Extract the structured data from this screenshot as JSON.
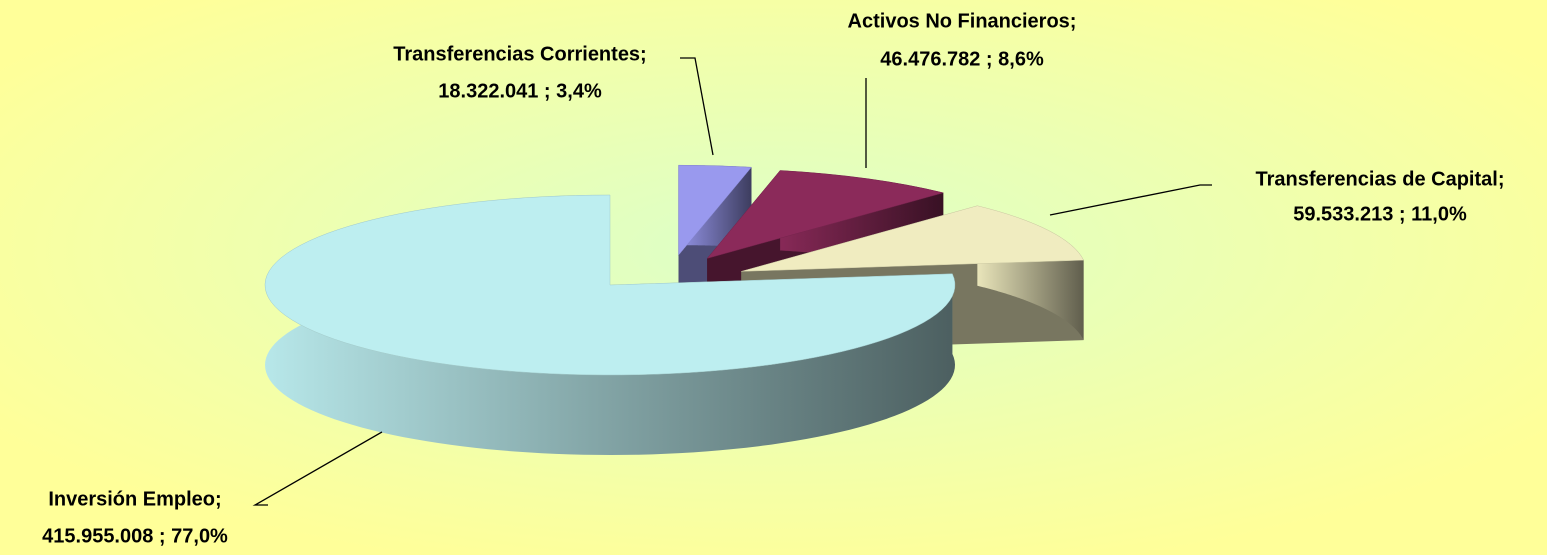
{
  "chart_data": {
    "type": "pie3d",
    "categories": [
      "Transferencias Corrientes;",
      "Activos No Financieros;",
      "Transferencias de Capital;",
      "Inversión Empleo;"
    ],
    "values": [
      18322041,
      46476782,
      59533213,
      415955008
    ],
    "value_labels": [
      "18.322.041 ; 3,4%",
      "46.476.782 ; 8,6%",
      "59.533.213 ; 11,0%",
      "415.955.008 ; 77,0%"
    ],
    "colors": [
      "#9999ee",
      "#8b2a5a",
      "#f0ecc0",
      "#bdeef0"
    ]
  }
}
